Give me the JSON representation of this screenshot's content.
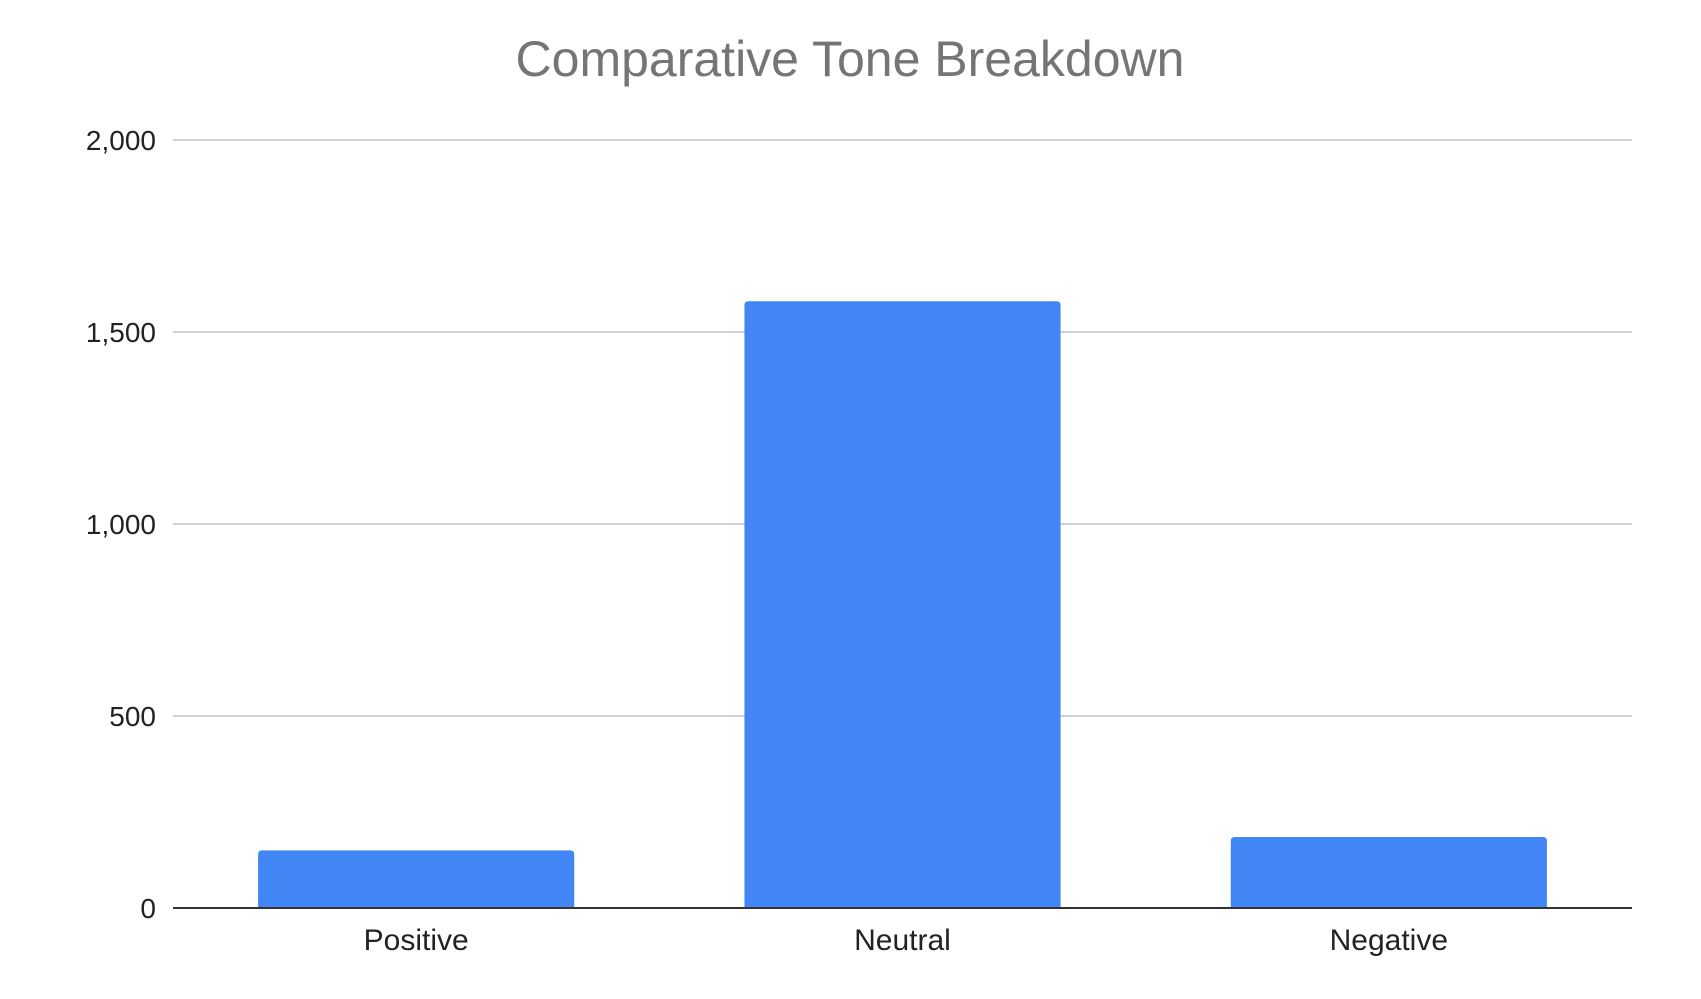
{
  "chart_data": {
    "type": "bar",
    "title": "Comparative Tone Breakdown",
    "xlabel": "",
    "ylabel": "",
    "categories": [
      "Positive",
      "Neutral",
      "Negative"
    ],
    "values": [
      150,
      1580,
      185
    ],
    "ylim": [
      0,
      2000
    ],
    "yticks": [
      0,
      500,
      1000,
      1500,
      2000
    ],
    "ytick_labels": [
      "0",
      "500",
      "1,000",
      "1,500",
      "2,000"
    ],
    "grid": true,
    "legend": "none",
    "colors": {
      "bar": "#4285F4",
      "grid": "#d0d0d0",
      "axis": "#333333",
      "title": "#757575",
      "tick_text": "#222222"
    }
  }
}
